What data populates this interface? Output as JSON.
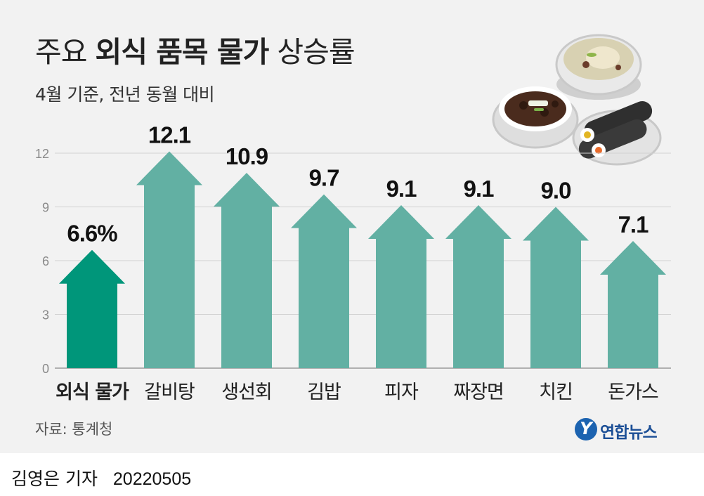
{
  "title": {
    "prefix": "주요",
    "bold": "외식 품목 물가",
    "suffix": "상승률"
  },
  "subtitle": "4월 기준, 전년 동월 대비",
  "source": "자료: 통계청",
  "logo": {
    "mark": "Y",
    "name": "연합뉴스"
  },
  "byline": {
    "reporter": "김영은 기자",
    "date": "20220505"
  },
  "colors": {
    "highlight": "#00967a",
    "bar": "#62b0a3",
    "grid": "#d2d2d2"
  },
  "chart_data": {
    "type": "bar",
    "categories": [
      "외식 물가",
      "갈비탕",
      "생선회",
      "김밥",
      "피자",
      "짜장면",
      "치킨",
      "돈가스"
    ],
    "values": [
      6.6,
      12.1,
      10.9,
      9.7,
      9.1,
      9.1,
      9.0,
      7.1
    ],
    "value_labels": [
      "6.6%",
      "12.1",
      "10.9",
      "9.7",
      "9.1",
      "9.1",
      "9.0",
      "7.1"
    ],
    "yticks": [
      0,
      3,
      6,
      9,
      12
    ],
    "ylim": [
      0,
      12.1
    ],
    "highlight_index": 0,
    "grid": true,
    "mark_shape": "arrow"
  }
}
